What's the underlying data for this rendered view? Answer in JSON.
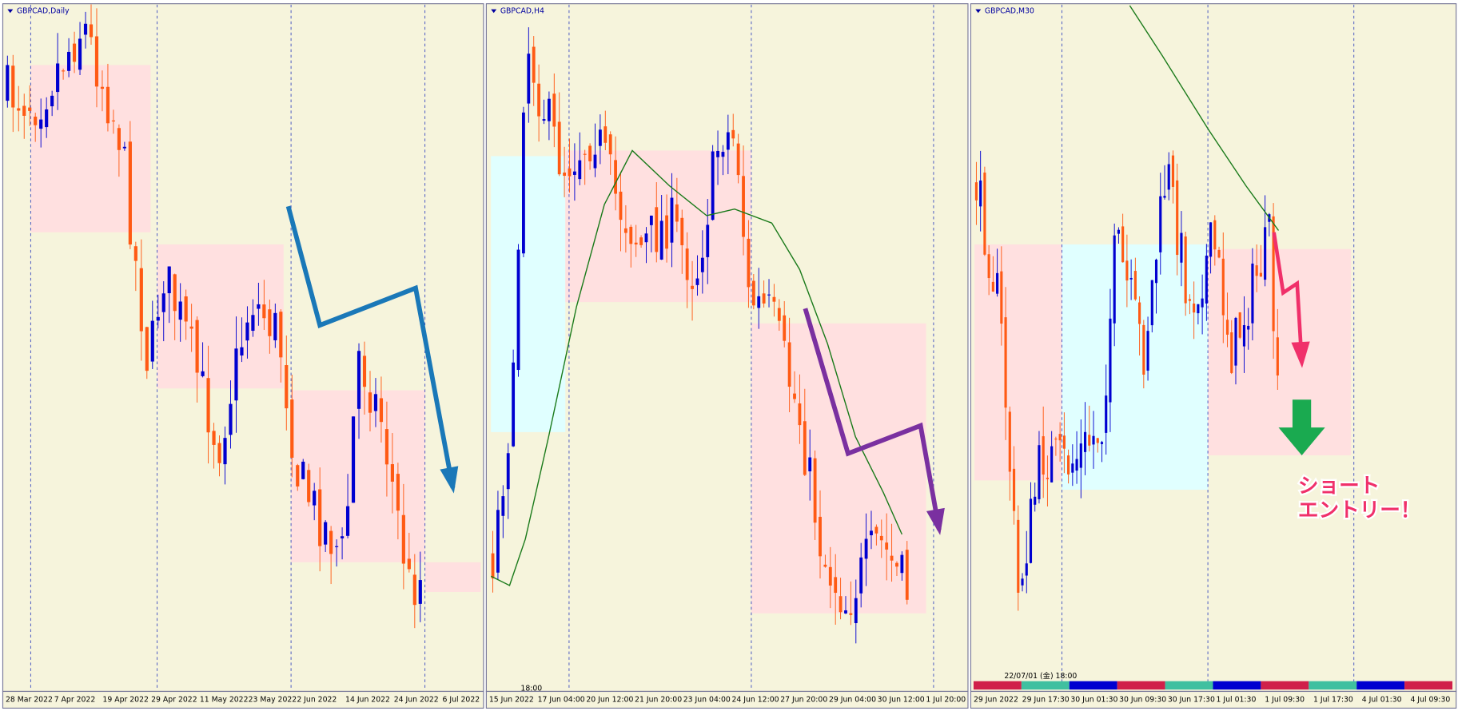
{
  "panels": [
    {
      "title": "GBPCAD,Daily",
      "x_labels": [
        "28 Mar 2022",
        "7 Apr 2022",
        "19 Apr 2022",
        "29 Apr 2022",
        "11 May 2022",
        "23 May 2022",
        "2 Jun 2022",
        "14 Jun 2022",
        "24 Jun 2022",
        "6 Jul 2022"
      ]
    },
    {
      "title": "GBPCAD,H4",
      "x_labels": [
        "15 Jun 2022",
        "17 Jun 04:00",
        "20 Jun 12:00",
        "21 Jun 20:00",
        "23 Jun 04:00",
        "24 Jun 12:00",
        "27 Jun 20:00",
        "29 Jun 04:00",
        "30 Jun 12:00",
        "1 Jul 20:00"
      ],
      "time_label": "18:00"
    },
    {
      "title": "GBPCAD,M30",
      "x_labels": [
        "29 Jun 2022",
        "29 Jun 17:30",
        "30 Jun 01:30",
        "30 Jun 09:30",
        "30 Jun 17:30",
        "1 Jul 01:30",
        "1 Jul 09:30",
        "1 Jul 17:30",
        "4 Jul 01:30",
        "4 Jul 09:30"
      ],
      "time_label": "22/07/01 (金) 18:00"
    }
  ],
  "annotation": {
    "line1": "ショート",
    "line2": "エントリー！"
  }
}
